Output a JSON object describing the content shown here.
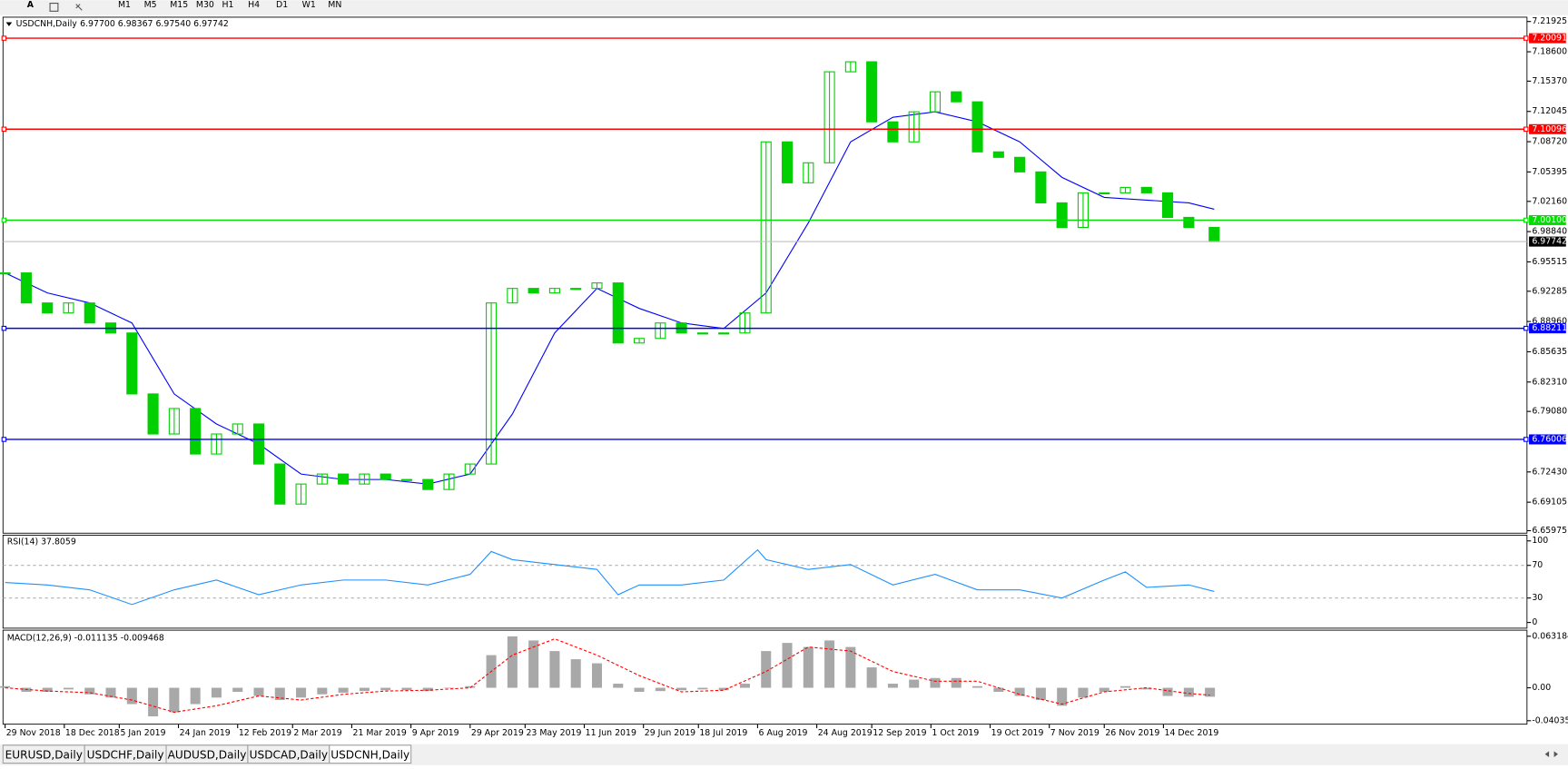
{
  "toolbar": {
    "font_button": "A",
    "periods": [
      "M1",
      "M5",
      "M15",
      "M30",
      "H1",
      "H4",
      "D1",
      "W1",
      "MN"
    ]
  },
  "chart_data": [
    {
      "type": "candlestick",
      "title": "USDCNH,Daily",
      "ohlc_text": "6.97700 6.98367 6.97540 6.97742",
      "color": "#00d000",
      "x": [
        0,
        5,
        10,
        15,
        20,
        25,
        30,
        35,
        40,
        45,
        50,
        55,
        60,
        65,
        70,
        75,
        80,
        85,
        90,
        95,
        100,
        105,
        110,
        115,
        120,
        125,
        130,
        135,
        140,
        145,
        150,
        155,
        160,
        165,
        170,
        175,
        180,
        185,
        190,
        195,
        200,
        205,
        210,
        215,
        220,
        225,
        230,
        235,
        240,
        245,
        250,
        255,
        260,
        265,
        270,
        275,
        280,
        286
      ],
      "close": [
        6.943,
        6.91,
        6.899,
        6.91,
        6.888,
        6.877,
        6.81,
        6.766,
        6.794,
        6.744,
        6.766,
        6.777,
        6.733,
        6.689,
        6.711,
        6.722,
        6.711,
        6.722,
        6.716,
        6.716,
        6.705,
        6.722,
        6.733,
        6.91,
        6.926,
        6.921,
        6.926,
        6.926,
        6.932,
        6.866,
        6.871,
        6.888,
        6.877,
        6.877,
        6.877,
        6.899,
        7.087,
        7.042,
        7.064,
        7.164,
        7.175,
        7.109,
        7.087,
        7.12,
        7.142,
        7.131,
        7.076,
        7.07,
        7.054,
        7.02,
        6.993,
        7.031,
        7.031,
        7.037,
        7.031,
        7.004,
        6.993,
        6.97742
      ],
      "moving_averages": [
        {
          "color": "#0000ff",
          "x": [
            0,
            10,
            20,
            30,
            40,
            50,
            60,
            70,
            80,
            90,
            100,
            110,
            120,
            130,
            140,
            150,
            160,
            170,
            180,
            190,
            200,
            210,
            220,
            230,
            240,
            250,
            260,
            270,
            280,
            286
          ],
          "values": [
            6.943,
            6.921,
            6.91,
            6.888,
            6.81,
            6.777,
            6.755,
            6.722,
            6.716,
            6.716,
            6.711,
            6.722,
            6.788,
            6.877,
            6.926,
            6.904,
            6.888,
            6.882,
            6.921,
            6.998,
            7.087,
            7.114,
            7.12,
            7.109,
            7.087,
            7.048,
            7.026,
            7.023,
            7.02,
            7.013
          ]
        }
      ],
      "xlim": [
        -0.5,
        360
      ],
      "ylim": [
        6.657,
        7.224
      ],
      "yticks": [
        {
          "value": 7.21925,
          "label": "7.21925"
        },
        {
          "value": 7.186,
          "label": "7.18600"
        },
        {
          "value": 7.1537,
          "label": "7.15370"
        },
        {
          "value": 7.12045,
          "label": "7.12045"
        },
        {
          "value": 7.0872,
          "label": "7.08720"
        },
        {
          "value": 7.05395,
          "label": "7.05395"
        },
        {
          "value": 7.0216,
          "label": "7.02160"
        },
        {
          "value": 6.9884,
          "label": "6.98840"
        },
        {
          "value": 6.95515,
          "label": "6.95515"
        },
        {
          "value": 6.92285,
          "label": "6.92285"
        },
        {
          "value": 6.8896,
          "label": "6.88960"
        },
        {
          "value": 6.85635,
          "label": "6.85635"
        },
        {
          "value": 6.8231,
          "label": "6.82310"
        },
        {
          "value": 6.7908,
          "label": "6.79080"
        },
        {
          "value": 6.7243,
          "label": "6.72430"
        },
        {
          "value": 6.69105,
          "label": "6.69105"
        },
        {
          "value": 6.65975,
          "label": "6.65975"
        }
      ],
      "levels": [
        {
          "value": 7.20091,
          "label": "7.20091",
          "color": "#ff0000"
        },
        {
          "value": 7.10096,
          "label": "7.10096",
          "color": "#ff0000"
        },
        {
          "value": 7.001,
          "label": "7.00100",
          "color": "#00e000"
        },
        {
          "value": 6.88211,
          "label": "6.88211",
          "color": "#0000ff"
        },
        {
          "value": 6.76006,
          "label": "6.76006",
          "color": "#0000ff"
        }
      ],
      "last_price": 6.97742,
      "xticks": [
        {
          "value": 0,
          "label": "29 Nov 2018"
        },
        {
          "value": 14,
          "label": "18 Dec 2018"
        },
        {
          "value": 27,
          "label": "5 Jan 2019"
        },
        {
          "value": 41,
          "label": "24 Jan 2019"
        },
        {
          "value": 55,
          "label": "12 Feb 2019"
        },
        {
          "value": 68,
          "label": "2 Mar 2019"
        },
        {
          "value": 82,
          "label": "21 Mar 2019"
        },
        {
          "value": 96,
          "label": "9 Apr 2019"
        },
        {
          "value": 110,
          "label": "29 Apr 2019"
        },
        {
          "value": 123,
          "label": "23 May 2019"
        },
        {
          "value": 137,
          "label": "11 Jun 2019"
        },
        {
          "value": 151,
          "label": "29 Jun 2019"
        },
        {
          "value": 164,
          "label": "18 Jul 2019"
        },
        {
          "value": 178,
          "label": "6 Aug 2019"
        },
        {
          "value": 192,
          "label": "24 Aug 2019"
        },
        {
          "value": 205,
          "label": "12 Sep 2019"
        },
        {
          "value": 219,
          "label": "1 Oct 2019"
        },
        {
          "value": 233,
          "label": "19 Oct 2019"
        },
        {
          "value": 247,
          "label": "7 Nov 2019"
        },
        {
          "value": 260,
          "label": "26 Nov 2019"
        },
        {
          "value": 274,
          "label": "14 Dec 2019"
        }
      ]
    },
    {
      "type": "line",
      "title": "RSI(14) 37.8059",
      "color": "#1e90ff",
      "x": [
        0,
        10,
        20,
        30,
        40,
        50,
        60,
        70,
        80,
        90,
        100,
        110,
        115,
        120,
        130,
        140,
        145,
        150,
        160,
        170,
        178,
        180,
        190,
        200,
        210,
        220,
        230,
        240,
        250,
        260,
        265,
        270,
        280,
        286
      ],
      "values": [
        49,
        46,
        40,
        22,
        40,
        52,
        34,
        46,
        52,
        52,
        46,
        59,
        87,
        77,
        71,
        65,
        34,
        46,
        46,
        52,
        89,
        77,
        65,
        71,
        46,
        59,
        40,
        40,
        30,
        52,
        62,
        43,
        46,
        38
      ],
      "xlim": [
        -0.5,
        360
      ],
      "ylim": [
        -7,
        107
      ],
      "yticks": [
        100,
        70,
        30,
        0
      ],
      "levels": [
        70,
        30
      ]
    },
    {
      "type": "macd",
      "title": "MACD(12,26,9) -0.011135 -0.009468",
      "bar_color": "#a8a8a8",
      "signal_color": "#ff0000",
      "x": [
        0,
        5,
        10,
        15,
        20,
        25,
        30,
        35,
        40,
        45,
        50,
        55,
        60,
        65,
        70,
        75,
        80,
        85,
        90,
        95,
        100,
        105,
        110,
        115,
        120,
        125,
        130,
        135,
        140,
        145,
        150,
        155,
        160,
        165,
        170,
        175,
        180,
        185,
        190,
        195,
        200,
        205,
        210,
        215,
        220,
        225,
        230,
        235,
        240,
        245,
        250,
        255,
        260,
        265,
        270,
        275,
        280,
        285
      ],
      "values": [
        0.002,
        -0.005,
        -0.005,
        -0.002,
        -0.008,
        -0.012,
        -0.02,
        -0.035,
        -0.03,
        -0.02,
        -0.012,
        -0.005,
        -0.01,
        -0.015,
        -0.012,
        -0.008,
        -0.006,
        -0.004,
        -0.003,
        -0.003,
        -0.004,
        0.0,
        0.002,
        0.04,
        0.063,
        0.058,
        0.045,
        0.035,
        0.03,
        0.005,
        -0.005,
        -0.004,
        -0.003,
        -0.002,
        -0.003,
        0.005,
        0.045,
        0.055,
        0.05,
        0.058,
        0.05,
        0.025,
        0.005,
        0.01,
        0.012,
        0.012,
        0.002,
        -0.005,
        -0.01,
        -0.015,
        -0.022,
        -0.012,
        -0.005,
        0.002,
        -0.002,
        -0.01,
        -0.011,
        -0.011
      ],
      "signal_x": [
        0,
        10,
        20,
        30,
        40,
        50,
        60,
        70,
        80,
        90,
        100,
        110,
        120,
        130,
        140,
        150,
        160,
        170,
        180,
        190,
        200,
        210,
        220,
        230,
        240,
        250,
        260,
        270,
        280,
        285
      ],
      "signal": [
        0.0,
        -0.004,
        -0.006,
        -0.015,
        -0.03,
        -0.022,
        -0.01,
        -0.015,
        -0.008,
        -0.004,
        -0.003,
        0.0,
        0.04,
        0.06,
        0.04,
        0.015,
        -0.005,
        -0.003,
        0.02,
        0.05,
        0.045,
        0.02,
        0.008,
        0.008,
        -0.008,
        -0.02,
        -0.005,
        0.0,
        -0.007,
        -0.009
      ],
      "xlim": [
        -0.5,
        360
      ],
      "ylim": [
        -0.0446,
        0.0706
      ],
      "yticks": [
        0.063184,
        {
          "value": 0,
          "label": "0.00"
        },
        -0.040355
      ]
    }
  ],
  "tabs": {
    "items": [
      "EURUSD,Daily",
      "USDCHF,Daily",
      "AUDUSD,Daily",
      "USDCAD,Daily",
      "USDCNH,Daily"
    ],
    "active": 4
  }
}
